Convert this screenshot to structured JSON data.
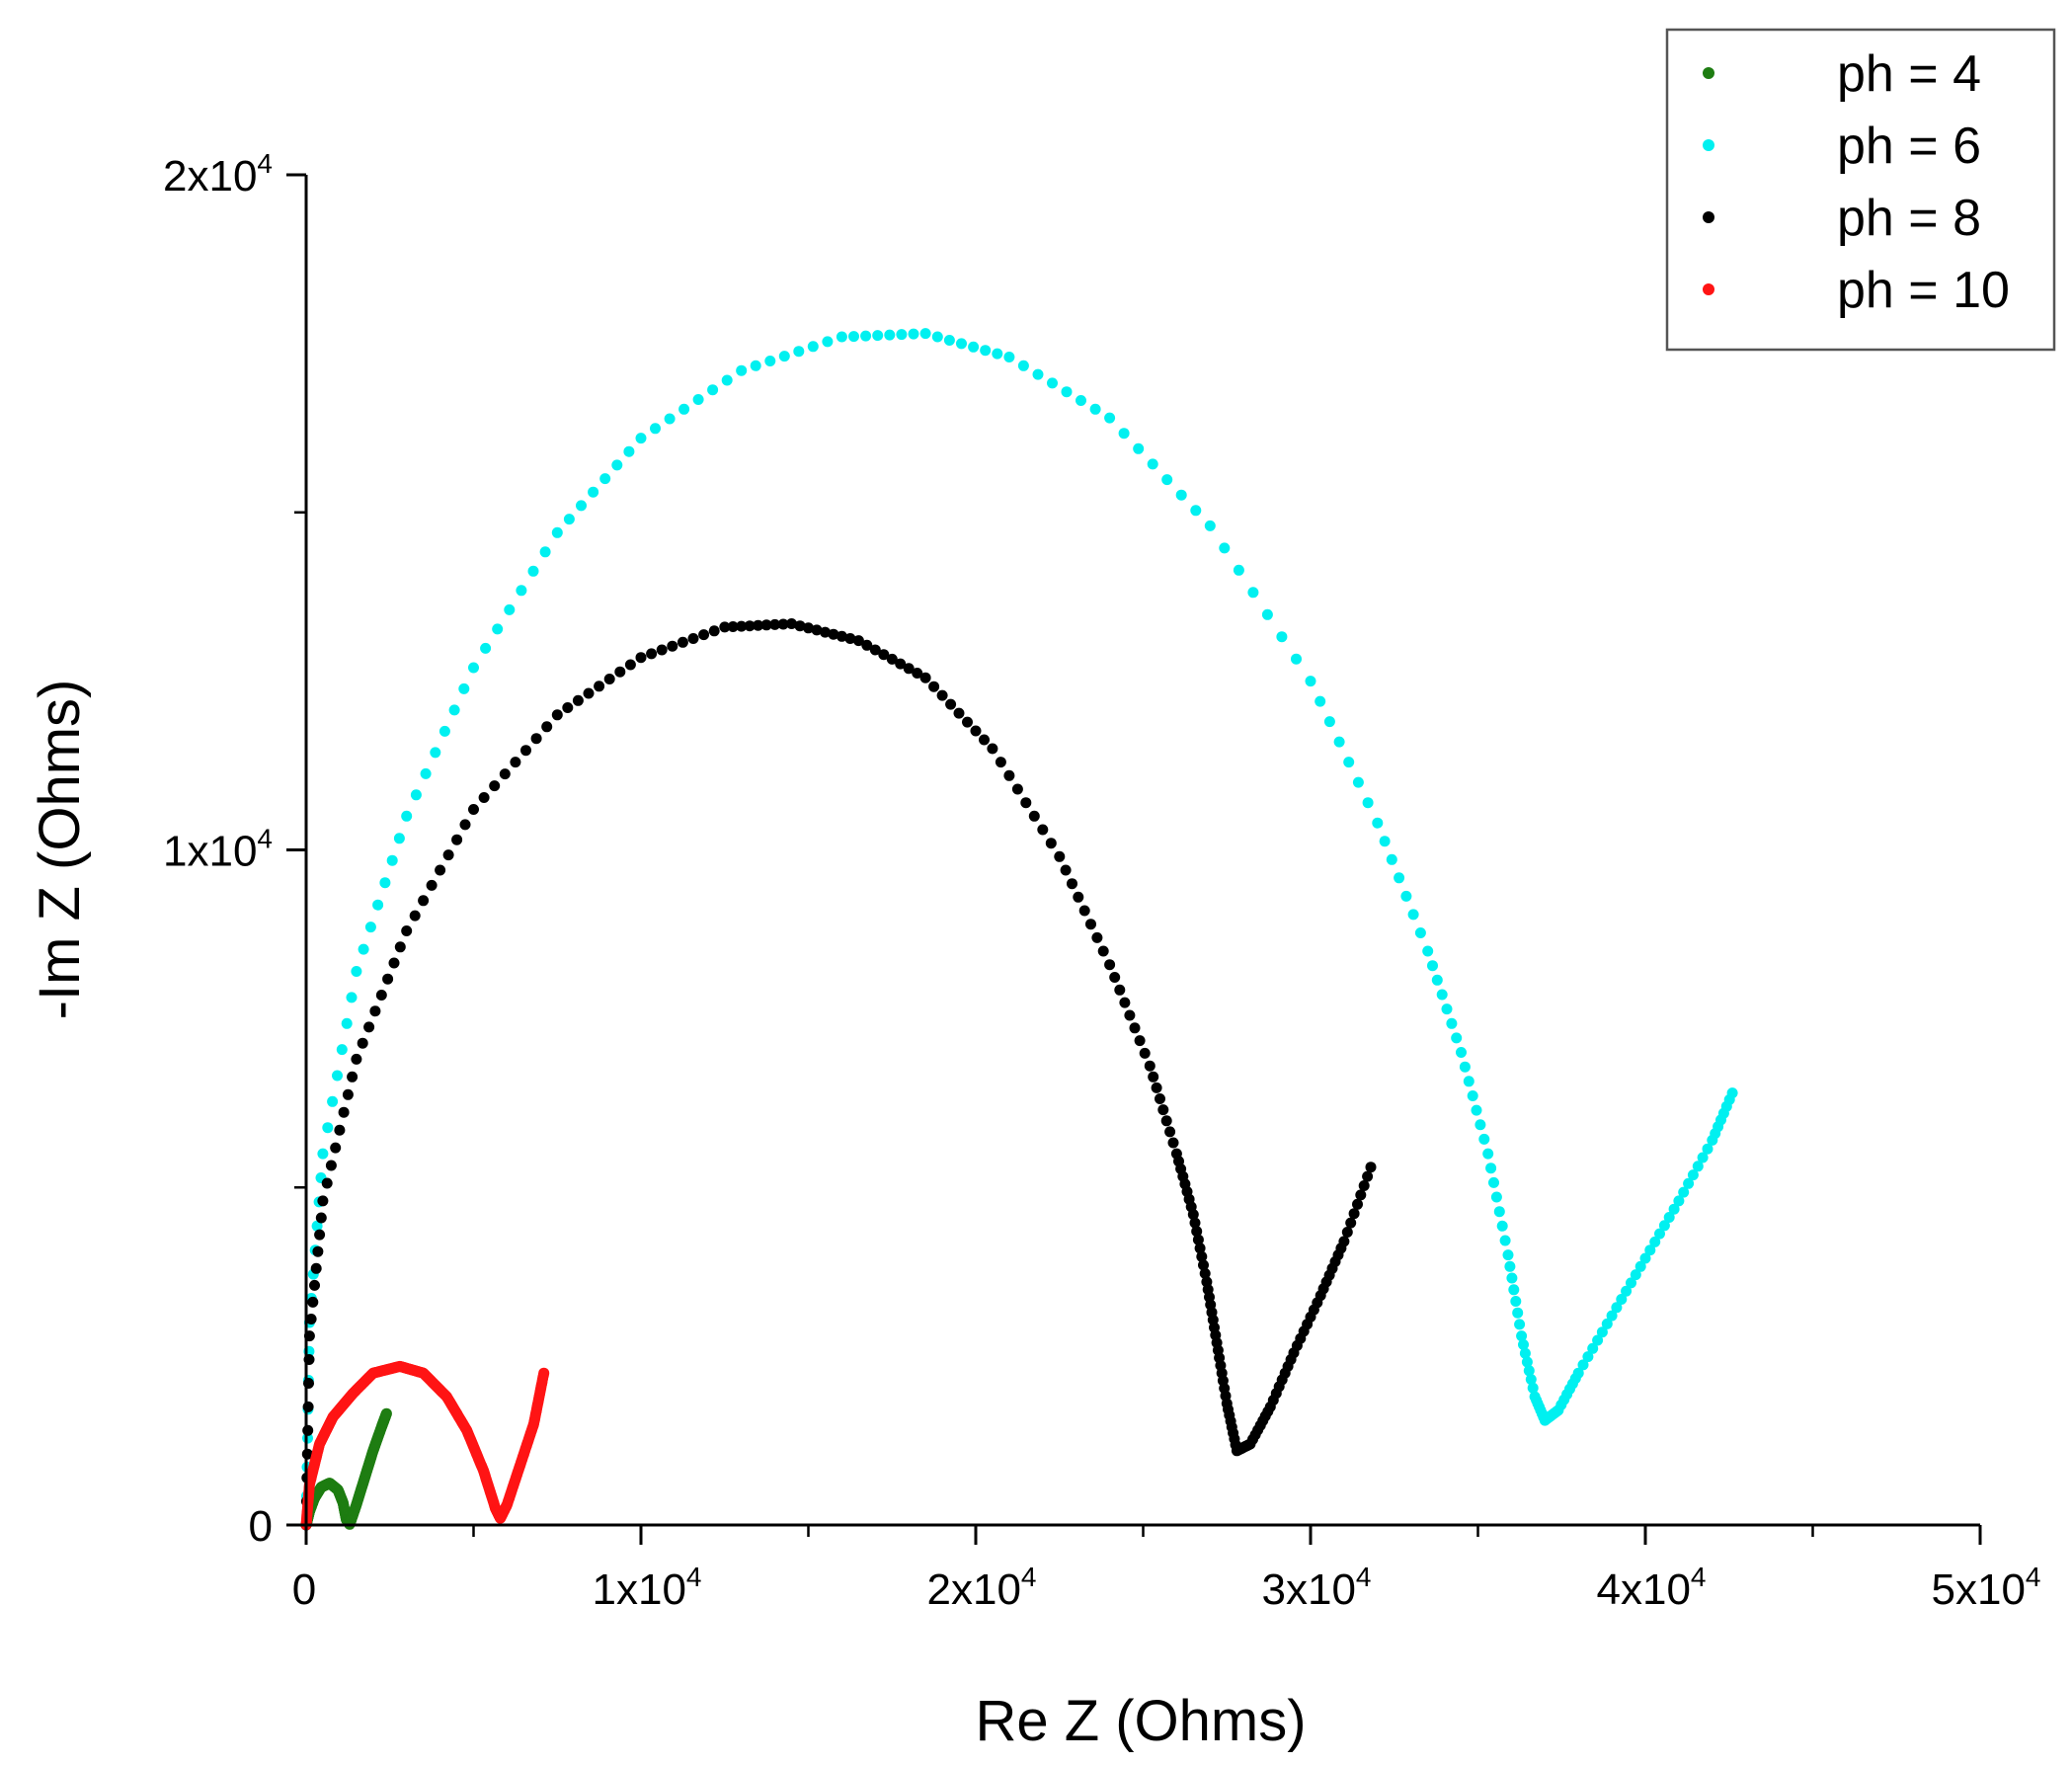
{
  "chart_data": {
    "type": "scatter",
    "title": "",
    "xlabel": "Re Z (Ohms)",
    "ylabel": "-Im Z (Ohms)",
    "xlim": [
      0,
      50000
    ],
    "ylim": [
      0,
      20000
    ],
    "grid": false,
    "legend_position": "top-right",
    "x_ticks": [
      {
        "value": 0,
        "label": "0",
        "mantissa": "",
        "exponent": ""
      },
      {
        "value": 10000,
        "label": "1x10^4",
        "mantissa": "1x10",
        "exponent": "4"
      },
      {
        "value": 20000,
        "label": "2x10^4",
        "mantissa": "2x10",
        "exponent": "4"
      },
      {
        "value": 30000,
        "label": "3x10^4",
        "mantissa": "3x10",
        "exponent": "4"
      },
      {
        "value": 40000,
        "label": "4x10^4",
        "mantissa": "4x10",
        "exponent": "4"
      },
      {
        "value": 50000,
        "label": "5x10^4",
        "mantissa": "5x10",
        "exponent": "4"
      }
    ],
    "y_ticks": [
      {
        "value": 0,
        "label": "0",
        "mantissa": "",
        "exponent": ""
      },
      {
        "value": 10000,
        "label": "1x10^4",
        "mantissa": "1x10",
        "exponent": "4"
      },
      {
        "value": 20000,
        "label": "2x10^4",
        "mantissa": "2x10",
        "exponent": "4"
      }
    ],
    "x_minor_ticks": [
      5000,
      15000,
      25000,
      35000,
      45000
    ],
    "y_minor_ticks": [
      5000,
      15000
    ],
    "series": [
      {
        "name": "ph = 4",
        "color": "#1e7d12",
        "points": [
          [
            0,
            0
          ],
          [
            100,
            200
          ],
          [
            250,
            400
          ],
          [
            450,
            560
          ],
          [
            700,
            620
          ],
          [
            950,
            520
          ],
          [
            1100,
            330
          ],
          [
            1200,
            80
          ],
          [
            1300,
            10
          ],
          [
            1500,
            300
          ],
          [
            1750,
            700
          ],
          [
            2000,
            1100
          ],
          [
            2250,
            1450
          ],
          [
            2400,
            1650
          ]
        ],
        "density": 24
      },
      {
        "name": "ph = 6",
        "color": "#00f0f0",
        "points": [
          [
            0,
            0
          ],
          [
            100,
            3000
          ],
          [
            500,
            5500
          ],
          [
            1500,
            8200
          ],
          [
            3000,
            10500
          ],
          [
            5000,
            12700
          ],
          [
            7500,
            14700
          ],
          [
            10000,
            16100
          ],
          [
            13000,
            17100
          ],
          [
            16000,
            17600
          ],
          [
            18500,
            17650
          ],
          [
            21000,
            17300
          ],
          [
            24000,
            16400
          ],
          [
            27000,
            14800
          ],
          [
            30000,
            12500
          ],
          [
            32000,
            10400
          ],
          [
            33500,
            8500
          ],
          [
            34500,
            7000
          ],
          [
            35300,
            5500
          ],
          [
            35900,
            4000
          ],
          [
            36300,
            2800
          ],
          [
            36700,
            1900
          ],
          [
            37000,
            1550
          ],
          [
            37400,
            1700
          ],
          [
            38000,
            2250
          ],
          [
            39000,
            3100
          ],
          [
            40000,
            3950
          ],
          [
            41000,
            4800
          ],
          [
            42000,
            5700
          ],
          [
            42600,
            6400
          ]
        ],
        "density": 7
      },
      {
        "name": "ph = 8",
        "color": "#000000",
        "points": [
          [
            0,
            0
          ],
          [
            100,
            2800
          ],
          [
            500,
            4800
          ],
          [
            1500,
            6900
          ],
          [
            3000,
            8800
          ],
          [
            5000,
            10600
          ],
          [
            7500,
            12000
          ],
          [
            10000,
            12850
          ],
          [
            12500,
            13300
          ],
          [
            14500,
            13350
          ],
          [
            16500,
            13100
          ],
          [
            18500,
            12550
          ],
          [
            20500,
            11500
          ],
          [
            22500,
            9900
          ],
          [
            24000,
            8300
          ],
          [
            25200,
            6800
          ],
          [
            26000,
            5500
          ],
          [
            26500,
            4600
          ],
          [
            26900,
            3600
          ],
          [
            27200,
            2700
          ],
          [
            27500,
            1800
          ],
          [
            27800,
            1100
          ],
          [
            28200,
            1200
          ],
          [
            28800,
            1750
          ],
          [
            29500,
            2550
          ],
          [
            30300,
            3400
          ],
          [
            31000,
            4200
          ],
          [
            31800,
            5300
          ]
        ],
        "density": 8
      },
      {
        "name": "ph = 10",
        "color": "#ff1414",
        "points": [
          [
            0,
            0
          ],
          [
            100,
            600
          ],
          [
            400,
            1200
          ],
          [
            800,
            1600
          ],
          [
            1400,
            1950
          ],
          [
            2000,
            2250
          ],
          [
            2800,
            2350
          ],
          [
            3500,
            2250
          ],
          [
            4200,
            1900
          ],
          [
            4800,
            1400
          ],
          [
            5300,
            800
          ],
          [
            5650,
            250
          ],
          [
            5800,
            100
          ],
          [
            6000,
            300
          ],
          [
            6400,
            900
          ],
          [
            6800,
            1500
          ],
          [
            7100,
            2250
          ]
        ],
        "density": 24
      }
    ]
  }
}
